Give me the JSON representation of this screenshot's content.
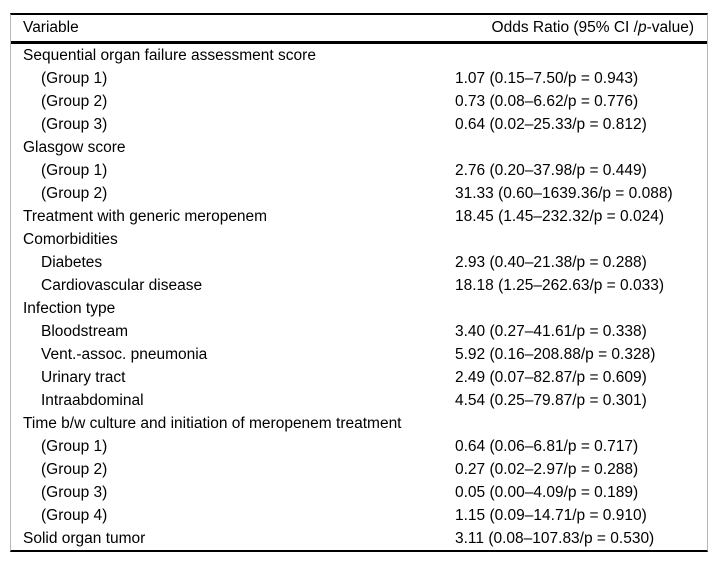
{
  "table": {
    "header": {
      "variable": "Variable",
      "odds_prefix": "Odds Ratio (95% CI /",
      "odds_p": "p",
      "odds_suffix": "-value)"
    },
    "rows": [
      {
        "label": "Sequential organ failure assessment score",
        "indent": 0,
        "value": ""
      },
      {
        "label": "(Group 1)",
        "indent": 1,
        "value": "1.07 (0.15–7.50/p = 0.943)"
      },
      {
        "label": "(Group 2)",
        "indent": 1,
        "value": "0.73 (0.08–6.62/p = 0.776)"
      },
      {
        "label": "(Group 3)",
        "indent": 1,
        "value": "0.64 (0.02–25.33/p = 0.812)"
      },
      {
        "label": "Glasgow score",
        "indent": 0,
        "value": ""
      },
      {
        "label": "(Group 1)",
        "indent": 1,
        "value": "2.76 (0.20–37.98/p = 0.449)"
      },
      {
        "label": "(Group 2)",
        "indent": 1,
        "value": "31.33 (0.60–1639.36/p = 0.088)"
      },
      {
        "label": "Treatment with generic meropenem",
        "indent": 0,
        "value": "18.45 (1.45–232.32/p = 0.024)"
      },
      {
        "label": "Comorbidities",
        "indent": 0,
        "value": ""
      },
      {
        "label": "Diabetes",
        "indent": 1,
        "value": "2.93 (0.40–21.38/p = 0.288)"
      },
      {
        "label": "Cardiovascular disease",
        "indent": 1,
        "value": "18.18 (1.25–262.63/p = 0.033)"
      },
      {
        "label": "Infection type",
        "indent": 0,
        "value": ""
      },
      {
        "label": "Bloodstream",
        "indent": 1,
        "value": "3.40 (0.27–41.61/p = 0.338)"
      },
      {
        "label": "Vent.-assoc. pneumonia",
        "indent": 1,
        "value": "5.92 (0.16–208.88/p = 0.328)"
      },
      {
        "label": "Urinary tract",
        "indent": 1,
        "value": "2.49 (0.07–82.87/p = 0.609)"
      },
      {
        "label": "Intraabdominal",
        "indent": 1,
        "value": "4.54 (0.25–79.87/p = 0.301)"
      },
      {
        "label": "Time b/w culture and initiation of meropenem treatment",
        "indent": 0,
        "value": ""
      },
      {
        "label": "(Group 1)",
        "indent": 1,
        "value": "0.64 (0.06–6.81/p = 0.717)"
      },
      {
        "label": "(Group 2)",
        "indent": 1,
        "value": "0.27 (0.02–2.97/p = 0.288)"
      },
      {
        "label": "(Group 3)",
        "indent": 1,
        "value": "0.05 (0.00–4.09/p = 0.189)"
      },
      {
        "label": "(Group 4)",
        "indent": 1,
        "value": "1.15 (0.09–14.71/p = 0.910)"
      },
      {
        "label": "Solid organ tumor",
        "indent": 0,
        "value": "3.11 (0.08–107.83/p = 0.530)"
      }
    ]
  }
}
